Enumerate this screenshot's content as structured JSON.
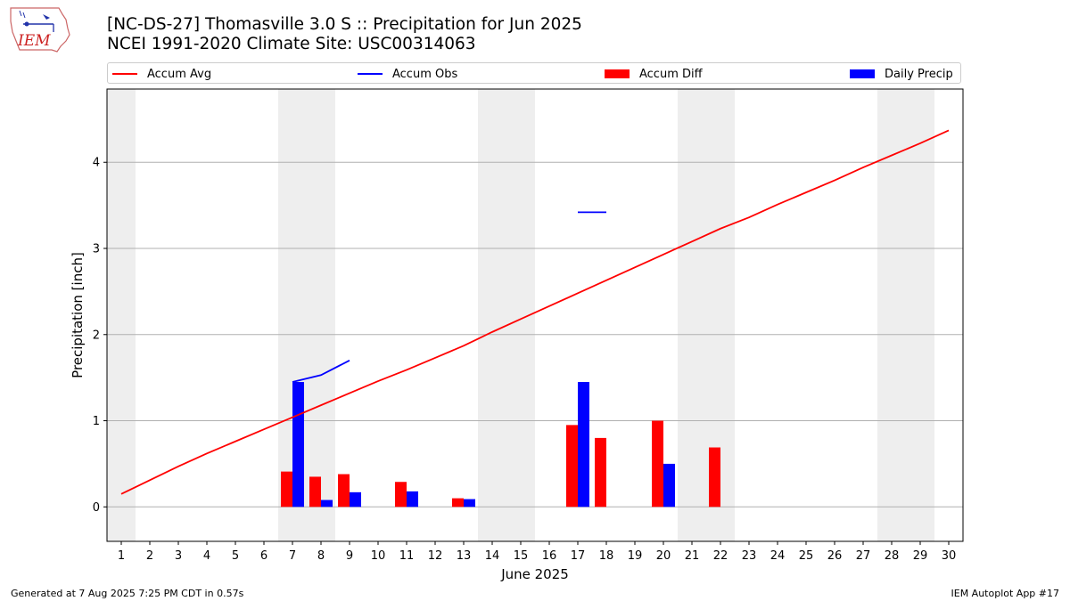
{
  "header": {
    "title_line1": "[NC-DS-27] Thomasville 3.0 S :: Precipitation for Jun 2025",
    "title_line2": "NCEI 1991-2020 Climate Site: USC00314063"
  },
  "logo": {
    "text": "IEM",
    "color": "#cc2222"
  },
  "legend": {
    "items": [
      {
        "label": "Accum Avg",
        "color": "#ff0000",
        "kind": "line"
      },
      {
        "label": "Accum Obs",
        "color": "#0000ff",
        "kind": "line"
      },
      {
        "label": "Accum Diff",
        "color": "#ff0000",
        "kind": "bar"
      },
      {
        "label": "Daily Precip",
        "color": "#0000ff",
        "kind": "bar"
      }
    ]
  },
  "chart_data": {
    "type": "bar",
    "xlabel": "June 2025",
    "ylabel": "Precipitation [inch]",
    "xlim": [
      0.5,
      30.5
    ],
    "ylim": [
      -0.4,
      4.85
    ],
    "x_ticks": [
      1,
      2,
      3,
      4,
      5,
      6,
      7,
      8,
      9,
      10,
      11,
      12,
      13,
      14,
      15,
      16,
      17,
      18,
      19,
      20,
      21,
      22,
      23,
      24,
      25,
      26,
      27,
      28,
      29,
      30
    ],
    "y_ticks": [
      0,
      1,
      2,
      3,
      4
    ],
    "grid": "horizontal",
    "legend_position": "top",
    "weekend_shading": [
      [
        0.5,
        1.5
      ],
      [
        6.5,
        8.5
      ],
      [
        13.5,
        15.5
      ],
      [
        20.5,
        22.5
      ],
      [
        27.5,
        29.5
      ]
    ],
    "colors": {
      "avg": "#ff0000",
      "obs": "#0000ff",
      "diff": "#ff0000",
      "daily": "#0000ff",
      "weekend": "#eeeeee",
      "grid": "#b0b0b0"
    },
    "series": [
      {
        "name": "Accum Avg",
        "kind": "line",
        "x": [
          1,
          2,
          3,
          4,
          5,
          6,
          7,
          8,
          9,
          10,
          11,
          12,
          13,
          14,
          15,
          16,
          17,
          18,
          19,
          20,
          21,
          22,
          23,
          24,
          25,
          26,
          27,
          28,
          29,
          30
        ],
        "values": [
          0.15,
          0.31,
          0.47,
          0.62,
          0.76,
          0.9,
          1.04,
          1.18,
          1.32,
          1.46,
          1.59,
          1.73,
          1.87,
          2.03,
          2.18,
          2.33,
          2.48,
          2.63,
          2.78,
          2.93,
          3.08,
          3.23,
          3.36,
          3.51,
          3.65,
          3.79,
          3.94,
          4.08,
          4.22,
          4.37
        ]
      },
      {
        "name": "Accum Obs",
        "kind": "line",
        "segments": [
          {
            "x": [
              7,
              8,
              9
            ],
            "values": [
              1.45,
              1.53,
              1.7
            ]
          },
          {
            "x": [
              17,
              18
            ],
            "values": [
              3.42,
              3.42
            ]
          }
        ]
      },
      {
        "name": "Accum Diff",
        "kind": "bar",
        "x": [
          7,
          8,
          9,
          11,
          13,
          17,
          18,
          20,
          22
        ],
        "values": [
          0.41,
          0.35,
          0.38,
          0.29,
          0.1,
          0.95,
          0.8,
          1.0,
          0.69
        ]
      },
      {
        "name": "Daily Precip",
        "kind": "bar",
        "x": [
          7,
          8,
          9,
          11,
          13,
          17,
          20
        ],
        "values": [
          1.45,
          0.08,
          0.17,
          0.18,
          0.09,
          1.45,
          0.5
        ]
      }
    ]
  },
  "footer": {
    "left": "Generated at 7 Aug 2025 7:25 PM CDT in 0.57s",
    "right": "IEM Autoplot App #17"
  }
}
